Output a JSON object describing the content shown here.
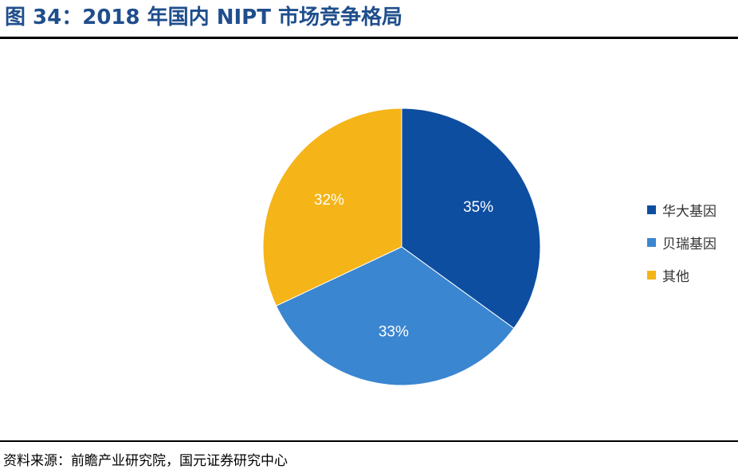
{
  "header": {
    "title": "图 34：2018 年国内 NIPT 市场竞争格局"
  },
  "footer": {
    "source": "资料来源：前瞻产业研究院，国元证券研究中心"
  },
  "chart_data": {
    "type": "pie",
    "title": "",
    "slices": [
      {
        "name": "华大基因",
        "value": 35,
        "label": "35%",
        "color": "#0d4ea1"
      },
      {
        "name": "贝瑞基因",
        "value": 33,
        "label": "33%",
        "color": "#3a86d0"
      },
      {
        "name": "其他",
        "value": 32,
        "label": "32%",
        "color": "#f5b417"
      }
    ],
    "start": "12 o'clock",
    "direction": "clockwise",
    "legend": "right"
  }
}
